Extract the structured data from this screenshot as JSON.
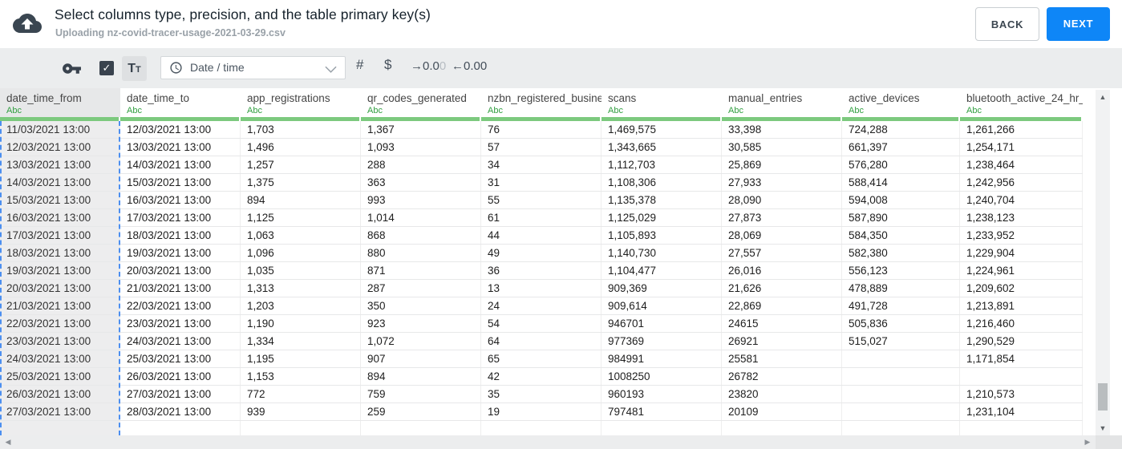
{
  "header": {
    "title": "Select columns type, precision, and the table primary key(s)",
    "subtitle": "Uploading nz-covid-tracer-usage-2021-03-29.csv",
    "back_label": "BACK",
    "next_label": "NEXT"
  },
  "toolbar": {
    "checkbox_glyph": "✓",
    "checkbox_checked": true,
    "text_type_label": "Tt",
    "type_selector": {
      "value": "Date / time"
    },
    "number_label": "#",
    "currency_label": "$",
    "increase_decimals": {
      "label_dark": "→0.0",
      "label_light": "0"
    },
    "decrease_decimals": {
      "label": "←0.00"
    }
  },
  "table": {
    "selected_column": "date_time_from",
    "columns": [
      {
        "name": "date_time_from",
        "type": "Abc",
        "selected": true
      },
      {
        "name": "date_time_to",
        "type": "Abc",
        "selected": false
      },
      {
        "name": "app_registrations",
        "type": "Abc",
        "selected": false
      },
      {
        "name": "qr_codes_generated",
        "type": "Abc",
        "selected": false
      },
      {
        "name": "nzbn_registered_busine",
        "type": "Abc",
        "selected": false
      },
      {
        "name": "scans",
        "type": "Abc",
        "selected": false
      },
      {
        "name": "manual_entries",
        "type": "Abc",
        "selected": false
      },
      {
        "name": "active_devices",
        "type": "Abc",
        "selected": false
      },
      {
        "name": "bluetooth_active_24_hr_",
        "type": "Abc",
        "selected": false
      }
    ],
    "rows": [
      [
        "11/03/2021 13:00",
        "12/03/2021 13:00",
        "1,703",
        "1,367",
        "76",
        "1,469,575",
        "33,398",
        "724,288",
        "1,261,266"
      ],
      [
        "12/03/2021 13:00",
        "13/03/2021 13:00",
        "1,496",
        "1,093",
        "57",
        "1,343,665",
        "30,585",
        "661,397",
        "1,254,171"
      ],
      [
        "13/03/2021 13:00",
        "14/03/2021 13:00",
        "1,257",
        "288",
        "34",
        "1,112,703",
        "25,869",
        "576,280",
        "1,238,464"
      ],
      [
        "14/03/2021 13:00",
        "15/03/2021 13:00",
        "1,375",
        "363",
        "31",
        "1,108,306",
        "27,933",
        "588,414",
        "1,242,956"
      ],
      [
        "15/03/2021 13:00",
        "16/03/2021 13:00",
        "894",
        "993",
        "55",
        "1,135,378",
        "28,090",
        "594,008",
        "1,240,704"
      ],
      [
        "16/03/2021 13:00",
        "17/03/2021 13:00",
        "1,125",
        "1,014",
        "61",
        "1,125,029",
        "27,873",
        "587,890",
        "1,238,123"
      ],
      [
        "17/03/2021 13:00",
        "18/03/2021 13:00",
        "1,063",
        "868",
        "44",
        "1,105,893",
        "28,069",
        "584,350",
        "1,233,952"
      ],
      [
        "18/03/2021 13:00",
        "19/03/2021 13:00",
        "1,096",
        "880",
        "49",
        "1,140,730",
        "27,557",
        "582,380",
        "1,229,904"
      ],
      [
        "19/03/2021 13:00",
        "20/03/2021 13:00",
        "1,035",
        "871",
        "36",
        "1,104,477",
        "26,016",
        "556,123",
        "1,224,961"
      ],
      [
        "20/03/2021 13:00",
        "21/03/2021 13:00",
        "1,313",
        "287",
        "13",
        "909,369",
        "21,626",
        "478,889",
        "1,209,602"
      ],
      [
        "21/03/2021 13:00",
        "22/03/2021 13:00",
        "1,203",
        "350",
        "24",
        "909,614",
        "22,869",
        "491,728",
        "1,213,891"
      ],
      [
        "22/03/2021 13:00",
        "23/03/2021 13:00",
        "1,190",
        "923",
        "54",
        "946701",
        "24615",
        "505,836",
        "1,216,460"
      ],
      [
        "23/03/2021 13:00",
        "24/03/2021 13:00",
        "1,334",
        "1,072",
        "64",
        "977369",
        "26921",
        "515,027",
        "1,290,529"
      ],
      [
        "24/03/2021 13:00",
        "25/03/2021 13:00",
        "1,195",
        "907",
        "65",
        "984991",
        "25581",
        "",
        "1,171,854"
      ],
      [
        "25/03/2021 13:00",
        "26/03/2021 13:00",
        "1,153",
        "894",
        "42",
        "1008250",
        "26782",
        "",
        ""
      ],
      [
        "26/03/2021 13:00",
        "27/03/2021 13:00",
        "772",
        "759",
        "35",
        "960193",
        "23820",
        "",
        "1,210,573"
      ],
      [
        "27/03/2021 13:00",
        "28/03/2021 13:00",
        "939",
        "259",
        "19",
        "797481",
        "20109",
        "",
        "1,231,104"
      ]
    ]
  },
  "scrollbars": {
    "up_glyph": "▲",
    "down_glyph": "▼",
    "left_glyph": "◀",
    "right_glyph": "▶"
  },
  "colors": {
    "next_blue": "#0e86f7",
    "type_green": "#2f9e3f",
    "underline_green": "#7cc97e",
    "selection_blue": "#4c8ff0",
    "icon_dark": "#3a4651"
  }
}
